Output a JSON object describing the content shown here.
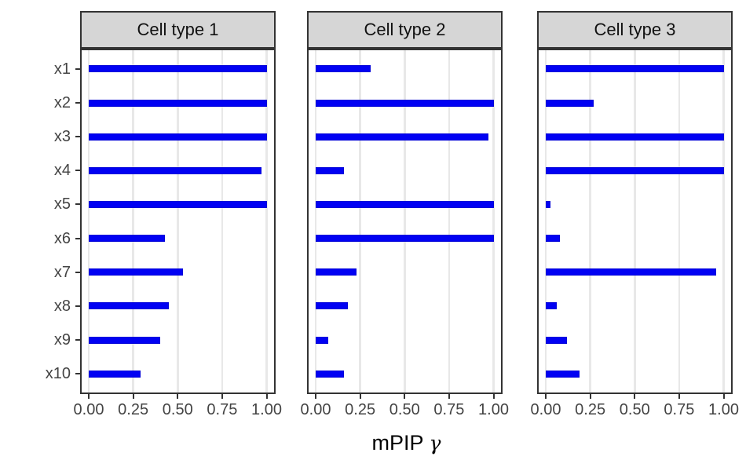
{
  "figure": {
    "background": "#ffffff",
    "bar_color": "#0101f3",
    "strip_fill": "#d6d6d6",
    "panel_border_color": "#333333",
    "gridline_color": "#e8e8e8",
    "axis_text_color": "#444444"
  },
  "chart_data": {
    "type": "bar",
    "orientation": "horizontal",
    "title": "",
    "xlabel": "mPIP γ",
    "xlabel_parts": {
      "text": "mPIP",
      "symbol": "γ"
    },
    "ylabel": "",
    "facets": [
      "Cell type 1",
      "Cell type 2",
      "Cell type 3"
    ],
    "categories": [
      "x1",
      "x2",
      "x3",
      "x4",
      "x5",
      "x6",
      "x7",
      "x8",
      "x9",
      "x10"
    ],
    "series": [
      {
        "name": "Cell type 1",
        "values": [
          1.0,
          1.0,
          1.0,
          0.97,
          1.0,
          0.43,
          0.53,
          0.45,
          0.4,
          0.29
        ]
      },
      {
        "name": "Cell type 2",
        "values": [
          0.31,
          1.0,
          0.97,
          0.16,
          1.0,
          1.0,
          0.23,
          0.18,
          0.07,
          0.16
        ]
      },
      {
        "name": "Cell type 3",
        "values": [
          1.0,
          0.27,
          1.0,
          1.0,
          0.025,
          0.08,
          0.96,
          0.06,
          0.12,
          0.19
        ]
      }
    ],
    "x_ticks": [
      "0.00",
      "0.25",
      "0.50",
      "0.75",
      "1.00"
    ],
    "x_tick_values": [
      0,
      0.25,
      0.5,
      0.75,
      1.0
    ],
    "xlim": [
      0,
      1
    ],
    "grid": "major-vertical-only",
    "legend": "none"
  }
}
